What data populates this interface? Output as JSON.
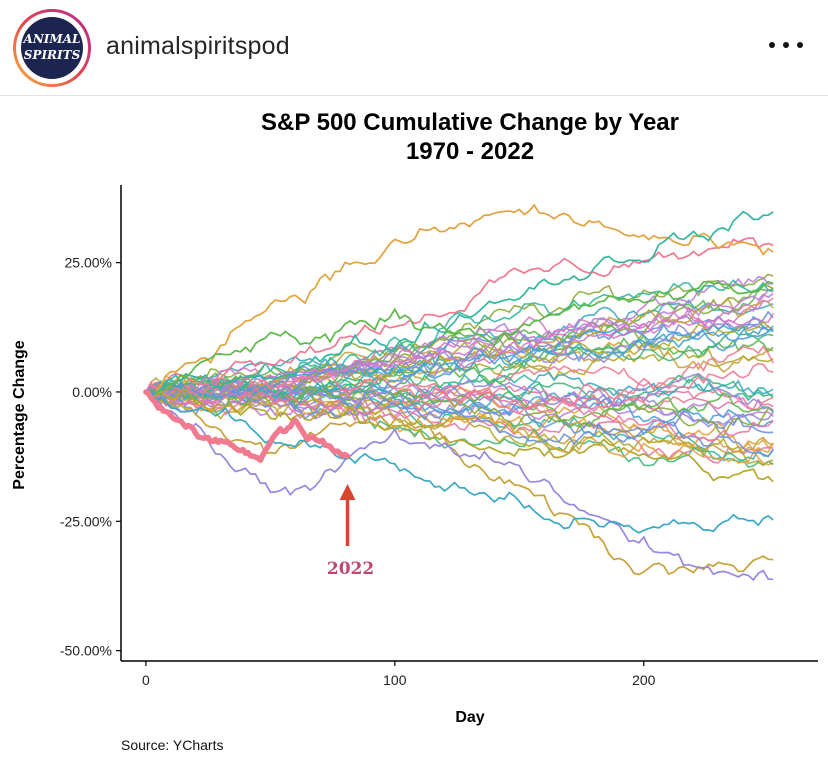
{
  "header": {
    "username": "animalspiritspod",
    "avatar_icon": "animal-spirits-logo",
    "avatar_text": [
      "ANIMAL",
      "SPIRITS"
    ],
    "more_icon": "more-horizontal-icon"
  },
  "chart_data": {
    "type": "line",
    "title": "S&P 500 Cumulative Change by Year",
    "subtitle": "1970 - 2022",
    "xlabel": "Day",
    "ylabel": "Percentage Change",
    "xlim": [
      -10,
      270
    ],
    "ylim": [
      -52,
      40
    ],
    "x_ticks": [
      0,
      100,
      200
    ],
    "y_ticks": [
      25,
      0,
      -25,
      -50
    ],
    "y_tick_labels": [
      "25.00%",
      "0.00%",
      "-25.00%",
      "-50.00%"
    ],
    "legend": "none",
    "grid": false,
    "source": "Source: YCharts",
    "series_count_years": "1970 - 2022",
    "highlight": {
      "label": "2022",
      "end_day": 81,
      "end_value": -12,
      "color": "#f07a8f",
      "arrow_color": "#d9462f"
    },
    "palette": [
      "#c8a23a",
      "#e3a23d",
      "#b5a82c",
      "#8bab3a",
      "#5cb84a",
      "#3fb87c",
      "#34b6a0",
      "#3aa9c4",
      "#4a9fd8",
      "#6a8fe0",
      "#9a86e0",
      "#b87ed8",
      "#d678c4",
      "#e877a6",
      "#f07a8f"
    ],
    "series": [
      {
        "values_at_days": [
          0,
          50,
          100,
          150,
          200,
          252
        ],
        "values": [
          0,
          8,
          14,
          22,
          26,
          28
        ],
        "color": "#f07a8f"
      },
      {
        "values_at_days": [
          0,
          50,
          100,
          150,
          200,
          252
        ],
        "values": [
          0,
          18,
          28,
          35,
          30,
          25
        ],
        "color": "#e3a23d"
      },
      {
        "values_at_days": [
          0,
          50,
          100,
          150,
          200,
          252
        ],
        "values": [
          0,
          -12,
          -5,
          -20,
          -35,
          -30
        ],
        "color": "#c8a23a"
      },
      {
        "values_at_days": [
          0,
          50,
          100,
          150,
          200,
          252
        ],
        "values": [
          0,
          -20,
          -10,
          -15,
          -30,
          -38
        ],
        "color": "#9a86e0"
      },
      {
        "values_at_days": [
          0,
          50,
          100,
          150,
          200,
          252
        ],
        "values": [
          0,
          5,
          10,
          20,
          28,
          34
        ],
        "color": "#34b6a0"
      },
      {
        "values_at_days": [
          0,
          50,
          100,
          150,
          200,
          252
        ],
        "values": [
          0,
          -8,
          -15,
          -22,
          -28,
          -24
        ],
        "color": "#3aa9c4"
      },
      {
        "values_at_days": [
          0,
          50,
          100,
          150,
          200,
          252
        ],
        "values": [
          0,
          10,
          15,
          12,
          18,
          20
        ],
        "color": "#5cb84a"
      },
      {
        "values_at_days": [
          0,
          50,
          100,
          150,
          200,
          252
        ],
        "values": [
          0,
          -3,
          -8,
          -10,
          -12,
          -18
        ],
        "color": "#b5a82c"
      }
    ]
  }
}
